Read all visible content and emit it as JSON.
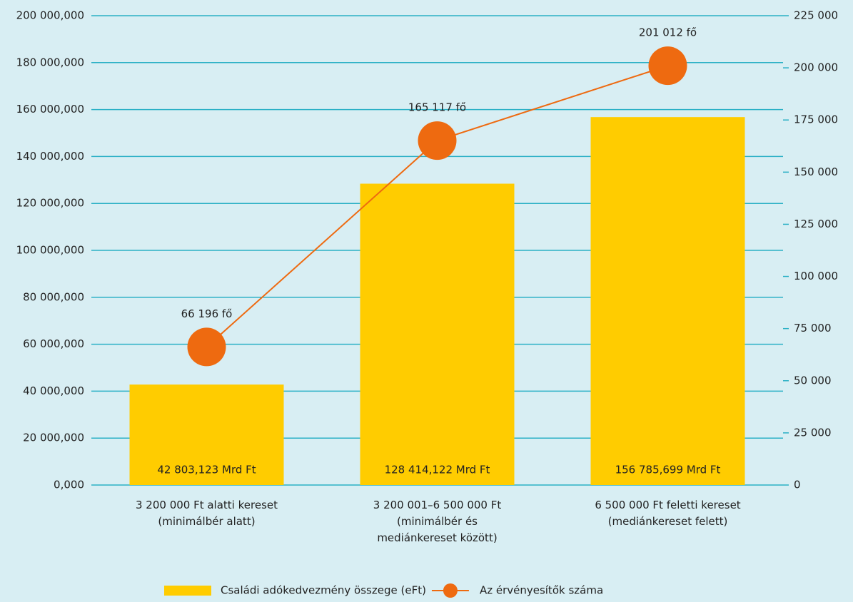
{
  "chart_data": {
    "type": "bar",
    "categories": [
      "3 200 000 Ft alatti kereset\n(minimálbér alatt)",
      "3 200 001–6 500 000 Ft\n(minimálbér és\nmediánkereset között)",
      "6 500 000 Ft feletti kereset\n(mediánkereset felett)"
    ],
    "series": [
      {
        "name": "Családi adókedvezmény összege (eFt)",
        "type": "bar",
        "color": "#ffcc00",
        "values": [
          42803123,
          128414122,
          156785699
        ],
        "value_labels": [
          "42 803,123 Mrd Ft",
          "128 414,122 Mrd Ft",
          "156 785,699 Mrd Ft"
        ]
      },
      {
        "name": "Az érvényesítők száma",
        "type": "line",
        "axis": "y2",
        "color": "#ee6a10",
        "values": [
          66196,
          165117,
          201012
        ],
        "value_labels": [
          "66 196 fő",
          "165 117 fő",
          "201 012 fő"
        ]
      }
    ],
    "ylim": [
      0,
      200000000
    ],
    "yticks": [
      {
        "value": 0,
        "label": "0,000"
      },
      {
        "value": 20000000,
        "label": "20 000,000"
      },
      {
        "value": 40000000,
        "label": "40 000,000"
      },
      {
        "value": 60000000,
        "label": "60 000,000"
      },
      {
        "value": 80000000,
        "label": "80 000,000"
      },
      {
        "value": 100000000,
        "label": "100 000,000"
      },
      {
        "value": 120000000,
        "label": "120 000,000"
      },
      {
        "value": 140000000,
        "label": "140 000,000"
      },
      {
        "value": 160000000,
        "label": "160 000,000"
      },
      {
        "value": 180000000,
        "label": "180 000,000"
      },
      {
        "value": 200000000,
        "label": "200 000,000"
      }
    ],
    "y2lim": [
      0,
      225000
    ],
    "y2ticks": [
      0,
      {
        "value": 25000,
        "label": "25 000"
      },
      {
        "value": 50000,
        "label": "50 000"
      },
      {
        "value": 75000,
        "label": "75 000"
      },
      {
        "value": 100000,
        "label": "100 000"
      },
      {
        "value": 125000,
        "label": "125 000"
      },
      {
        "value": 150000,
        "label": "150 000"
      },
      {
        "value": 175000,
        "label": "175 000"
      },
      {
        "value": 200000,
        "label": "200 000"
      },
      {
        "value": 225000,
        "label": "225 000"
      }
    ],
    "grid": true,
    "legend": "bottom"
  }
}
